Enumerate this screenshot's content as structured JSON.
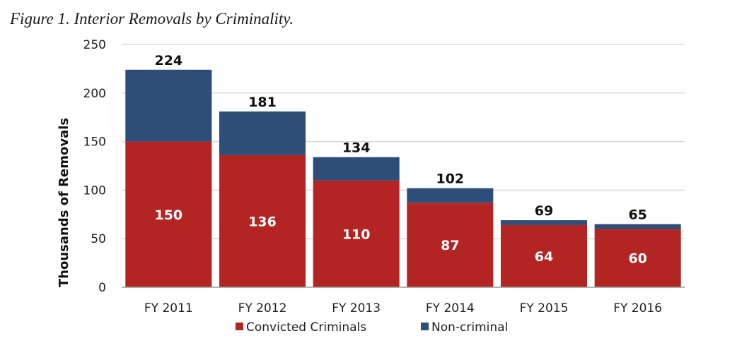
{
  "title": "Figure 1. Interior Removals by Criminality.",
  "colors": {
    "convicted": "#b22522",
    "noncriminal": "#2e4d78",
    "grid": "#d9d9d9",
    "axis": "#9a9a9a"
  },
  "chart_data": {
    "type": "bar",
    "stacked": true,
    "title": "Figure 1. Interior Removals by Criminality.",
    "xlabel": "",
    "ylabel": "Thousands of Removals",
    "ylim": [
      0,
      250
    ],
    "yticks": [
      0,
      50,
      100,
      150,
      200,
      250
    ],
    "grid": true,
    "legend_position": "bottom",
    "categories": [
      "FY 2011",
      "FY 2012",
      "FY 2013",
      "FY 2014",
      "FY 2015",
      "FY 2016"
    ],
    "series": [
      {
        "name": "Convicted Criminals",
        "values": [
          150,
          136,
          110,
          87,
          64,
          60
        ]
      },
      {
        "name": "Non-criminal",
        "values": [
          74,
          45,
          24,
          15,
          5,
          5
        ]
      }
    ],
    "totals": [
      224,
      181,
      134,
      102,
      69,
      65
    ]
  }
}
